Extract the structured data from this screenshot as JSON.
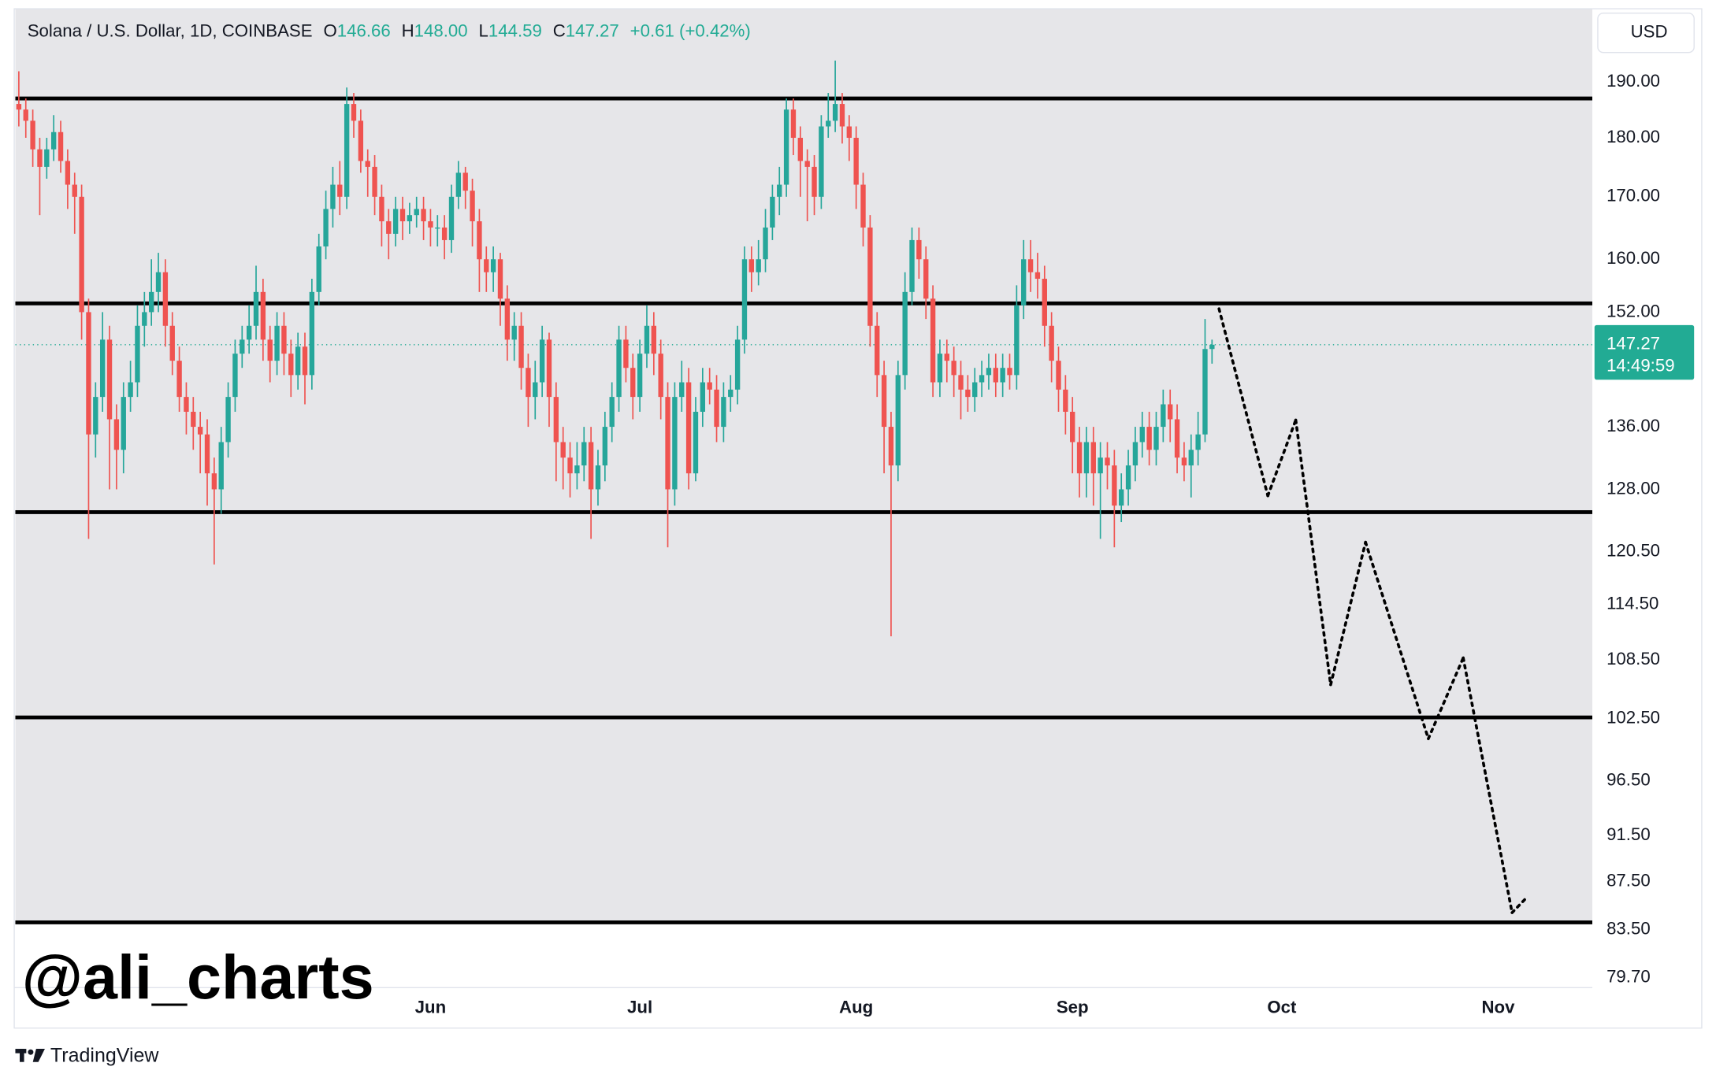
{
  "chart_data": {
    "type": "candlestick",
    "title": "Solana / U.S. Dollar, 1D, COINBASE",
    "ohlc_header": {
      "open_label": "O",
      "open": "146.66",
      "high_label": "H",
      "high": "148.00",
      "low_label": "L",
      "low": "144.59",
      "close_label": "C",
      "close": "147.27",
      "change": "+0.61 (+0.42%)"
    },
    "currency": "USD",
    "watermark": "@ali_charts",
    "brand": "TradingView",
    "log_scale": true,
    "up_color": "#26a69a",
    "down_color": "#ef5350",
    "ylim": [
      79.2,
      204
    ],
    "yticks": [
      {
        "value": 190,
        "label": "190.00"
      },
      {
        "value": 180,
        "label": "180.00"
      },
      {
        "value": 170,
        "label": "170.00"
      },
      {
        "value": 160,
        "label": "160.00"
      },
      {
        "value": 152,
        "label": "152.00"
      },
      {
        "value": 136,
        "label": "136.00"
      },
      {
        "value": 128,
        "label": "128.00"
      },
      {
        "value": 120.5,
        "label": "120.50"
      },
      {
        "value": 114.5,
        "label": "114.50"
      },
      {
        "value": 108.5,
        "label": "108.50"
      },
      {
        "value": 102.5,
        "label": "102.50"
      },
      {
        "value": 96.5,
        "label": "96.50"
      },
      {
        "value": 91.5,
        "label": "91.50"
      },
      {
        "value": 87.5,
        "label": "87.50"
      },
      {
        "value": 83.5,
        "label": "83.50"
      },
      {
        "value": 79.7,
        "label": "79.70"
      }
    ],
    "price_label": {
      "value": 147.27,
      "label": "147.27"
    },
    "countdown": "14:49:59",
    "levels": [
      187,
      153.3,
      125.2,
      102.6,
      84.1
    ],
    "categories": [
      null,
      null,
      null,
      null,
      null,
      null,
      null,
      null,
      null,
      null,
      null,
      null,
      null,
      null,
      null,
      null,
      null,
      null,
      null,
      null,
      null,
      null,
      null,
      null,
      null,
      null,
      null,
      null,
      null,
      null,
      null,
      null,
      null,
      null,
      null,
      null,
      null,
      null,
      null,
      null,
      null,
      null,
      null,
      null,
      null,
      null,
      null,
      null,
      null,
      null,
      null,
      null,
      null,
      null,
      null,
      null,
      null,
      null,
      null,
      "Jun",
      null,
      null,
      null,
      null,
      null,
      null,
      null,
      null,
      null,
      null,
      null,
      null,
      null,
      null,
      null,
      null,
      null,
      null,
      null,
      null,
      null,
      null,
      null,
      null,
      null,
      null,
      null,
      null,
      null,
      "Jul",
      null,
      null,
      null,
      null,
      null,
      null,
      null,
      null,
      null,
      null,
      null,
      null,
      null,
      null,
      null,
      null,
      null,
      null,
      null,
      null,
      null,
      null,
      null,
      null,
      null,
      null,
      null,
      null,
      null,
      null,
      "Aug",
      null,
      null,
      null,
      null,
      null,
      null,
      null,
      null,
      null,
      null,
      null,
      null,
      null,
      null,
      null,
      null,
      null,
      null,
      null,
      null,
      null,
      null,
      null,
      null,
      null,
      null,
      null,
      null,
      null,
      null,
      "Sep",
      null,
      null,
      null,
      null,
      null,
      null,
      null,
      null,
      null,
      null,
      null,
      null,
      null,
      null,
      null,
      null,
      null,
      null,
      null,
      null,
      null,
      null,
      null,
      null,
      null,
      null,
      null,
      null,
      null,
      "Oct",
      null,
      null,
      null,
      null,
      null,
      null,
      null,
      null,
      null,
      null,
      null,
      null,
      null,
      null,
      null,
      null,
      null,
      null,
      null,
      null,
      null,
      null,
      null,
      null,
      null,
      null,
      null,
      null,
      null,
      null,
      "Nov",
      null,
      null,
      null,
      null,
      null,
      null,
      null,
      null,
      null,
      null,
      null,
      null,
      null
    ],
    "ohlc": {
      "open": [
        186,
        185,
        183,
        178,
        175,
        178,
        181,
        176,
        172,
        170,
        152,
        135,
        140,
        148,
        137,
        133,
        140,
        142,
        150,
        152,
        155,
        158,
        150,
        145,
        140,
        138,
        136,
        135,
        130,
        128,
        134,
        140,
        146,
        148,
        150,
        155,
        148,
        145,
        150,
        146,
        143,
        147,
        143,
        155,
        162,
        168,
        172,
        170,
        186,
        183,
        176,
        175,
        170,
        166,
        164,
        168,
        166,
        167,
        168,
        166,
        165,
        165,
        163,
        170,
        174,
        171,
        166,
        160,
        158,
        160,
        154,
        148,
        150,
        144,
        140,
        142,
        148,
        140,
        134,
        132,
        130,
        131,
        134,
        128,
        131,
        136,
        140,
        148,
        144,
        140,
        146,
        150,
        146,
        140,
        128,
        140,
        142,
        130,
        138,
        142,
        141,
        136,
        140,
        141,
        148,
        160,
        158,
        160,
        165,
        170,
        172,
        185,
        180,
        176,
        175,
        170,
        182,
        183,
        186,
        182,
        180,
        172,
        165,
        150,
        143,
        136,
        131,
        143,
        155,
        163,
        160,
        154,
        142,
        146,
        145,
        143,
        141,
        140,
        142,
        143,
        144,
        142,
        144,
        143,
        153,
        160,
        158,
        157,
        150,
        145,
        141,
        138,
        134,
        130,
        134,
        130,
        132,
        131,
        126,
        128,
        131,
        134,
        136,
        133,
        136,
        139,
        137,
        132,
        131,
        133,
        135,
        146.66,
        null,
        null,
        null,
        null,
        null,
        null,
        null,
        null,
        null,
        null,
        null,
        null,
        null,
        null,
        null,
        null,
        null,
        null,
        null,
        null,
        null,
        null,
        null,
        null,
        null,
        null,
        null,
        null,
        null,
        null,
        null,
        null,
        null,
        null,
        null,
        null,
        null,
        null,
        null,
        null,
        null,
        null,
        null,
        null,
        null,
        null,
        null,
        null,
        null,
        null,
        null,
        null,
        null,
        null
      ],
      "high": [
        192,
        187,
        185,
        180,
        180,
        184,
        183,
        178,
        174,
        172,
        154,
        142,
        152,
        150,
        139,
        142,
        145,
        153,
        155,
        160,
        161,
        160,
        152,
        147,
        142,
        140,
        138,
        137,
        132,
        136,
        142,
        148,
        150,
        153,
        159,
        157,
        150,
        152,
        152,
        148,
        149,
        149,
        157,
        164,
        171,
        175,
        176,
        189,
        188,
        185,
        178,
        177,
        172,
        168,
        170,
        170,
        169,
        170,
        170,
        168,
        167,
        167,
        172,
        176,
        175,
        173,
        168,
        162,
        162,
        161,
        156,
        152,
        152,
        146,
        145,
        150,
        149,
        142,
        136,
        134,
        134,
        136,
        136,
        133,
        138,
        142,
        150,
        150,
        146,
        148,
        153,
        152,
        148,
        142,
        142,
        145,
        144,
        140,
        144,
        144,
        143,
        142,
        143,
        150,
        162,
        162,
        163,
        168,
        172,
        175,
        187,
        187,
        182,
        178,
        177,
        184,
        188,
        194,
        188,
        184,
        182,
        174,
        167,
        152,
        145,
        138,
        145,
        158,
        165,
        165,
        162,
        156,
        148,
        148,
        147,
        145,
        143,
        144,
        145,
        146,
        146,
        146,
        146,
        156,
        163,
        163,
        161,
        159,
        152,
        147,
        143,
        140,
        136,
        136,
        136,
        134,
        134,
        133,
        130,
        133,
        136,
        138,
        138,
        138,
        141,
        141,
        139,
        134,
        135,
        138,
        151,
        148,
        null,
        null,
        null,
        null,
        null,
        null,
        null,
        null,
        null,
        null,
        null,
        null,
        null,
        null,
        null,
        null,
        null,
        null,
        null,
        null,
        null,
        null,
        null,
        null,
        null,
        null,
        null,
        null,
        null,
        null,
        null,
        null,
        null,
        null,
        null,
        null,
        null,
        null,
        null,
        null,
        null,
        null,
        null,
        null,
        null,
        null,
        null,
        null,
        null,
        null,
        null,
        null,
        null,
        null
      ],
      "low": [
        182,
        180,
        175,
        167,
        173,
        176,
        174,
        168,
        164,
        148,
        122,
        132,
        138,
        128,
        128,
        130,
        138,
        140,
        147,
        150,
        152,
        147,
        143,
        138,
        135,
        133,
        130,
        126,
        119,
        125,
        132,
        138,
        144,
        146,
        148,
        145,
        142,
        143,
        143,
        140,
        141,
        139,
        141,
        153,
        160,
        165,
        167,
        168,
        180,
        174,
        170,
        167,
        162,
        160,
        162,
        163,
        164,
        165,
        163,
        162,
        162,
        160,
        161,
        168,
        168,
        162,
        155,
        155,
        155,
        150,
        145,
        145,
        141,
        136,
        137,
        140,
        136,
        129,
        128,
        127,
        128,
        129,
        122,
        126,
        129,
        134,
        138,
        142,
        137,
        138,
        144,
        143,
        137,
        121,
        126,
        138,
        128,
        129,
        136,
        139,
        134,
        134,
        138,
        139,
        146,
        155,
        156,
        158,
        163,
        167,
        170,
        177,
        170,
        166,
        167,
        168,
        180,
        181,
        179,
        176,
        168,
        162,
        147,
        140,
        130,
        111,
        129,
        141,
        153,
        157,
        151,
        140,
        140,
        142,
        140,
        137,
        138,
        138,
        140,
        141,
        140,
        140,
        141,
        141,
        151,
        155,
        154,
        147,
        142,
        138,
        135,
        130,
        127,
        127,
        126,
        122,
        128,
        121,
        124,
        126,
        129,
        132,
        131,
        131,
        134,
        134,
        130,
        129,
        127,
        131,
        134,
        144.59,
        null,
        null,
        null,
        null,
        null,
        null,
        null,
        null,
        null,
        null,
        null,
        null,
        null,
        null,
        null,
        null,
        null,
        null,
        null,
        null,
        null,
        null,
        null,
        null,
        null,
        null,
        null,
        null,
        null,
        null,
        null,
        null,
        null,
        null,
        null,
        null,
        null,
        null,
        null,
        null,
        null,
        null,
        null,
        null,
        null,
        null,
        null,
        null,
        null,
        null,
        null,
        null,
        null,
        null
      ],
      "close": [
        185,
        183,
        178,
        175,
        178,
        181,
        176,
        172,
        170,
        152,
        135,
        140,
        148,
        137,
        133,
        140,
        142,
        150,
        152,
        155,
        158,
        150,
        145,
        140,
        138,
        136,
        135,
        130,
        128,
        134,
        140,
        146,
        148,
        150,
        155,
        148,
        145,
        150,
        146,
        143,
        147,
        143,
        155,
        162,
        168,
        172,
        170,
        186,
        183,
        176,
        175,
        170,
        166,
        164,
        168,
        166,
        167,
        168,
        166,
        165,
        165,
        163,
        170,
        174,
        171,
        166,
        160,
        158,
        160,
        154,
        148,
        150,
        144,
        140,
        142,
        148,
        140,
        134,
        132,
        130,
        131,
        134,
        128,
        131,
        136,
        140,
        148,
        144,
        140,
        146,
        150,
        146,
        140,
        128,
        140,
        142,
        130,
        138,
        142,
        141,
        136,
        140,
        141,
        148,
        160,
        158,
        160,
        165,
        170,
        172,
        185,
        180,
        176,
        175,
        170,
        182,
        183,
        186,
        182,
        180,
        172,
        165,
        150,
        143,
        136,
        131,
        143,
        155,
        163,
        160,
        154,
        142,
        146,
        145,
        143,
        141,
        140,
        142,
        143,
        144,
        142,
        144,
        143,
        153,
        160,
        158,
        157,
        150,
        145,
        141,
        138,
        134,
        130,
        134,
        130,
        132,
        131,
        126,
        128,
        131,
        134,
        136,
        133,
        136,
        139,
        137,
        132,
        131,
        133,
        135,
        146.66,
        147.27,
        null,
        null,
        null,
        null,
        null,
        null,
        null,
        null,
        null,
        null,
        null,
        null,
        null,
        null,
        null,
        null,
        null,
        null,
        null,
        null,
        null,
        null,
        null,
        null,
        null,
        null,
        null,
        null,
        null,
        null,
        null,
        null,
        null,
        null,
        null,
        null,
        null,
        null,
        null,
        null,
        null,
        null,
        null,
        null,
        null,
        null,
        null,
        null,
        null,
        null,
        null,
        null,
        null,
        null
      ]
    },
    "projection": {
      "color": "#000000",
      "values": [
        null,
        null,
        null,
        null,
        null,
        null,
        null,
        null,
        null,
        null,
        null,
        null,
        null,
        null,
        null,
        null,
        null,
        null,
        null,
        null,
        null,
        null,
        null,
        null,
        null,
        null,
        null,
        null,
        null,
        null,
        null,
        null,
        null,
        null,
        null,
        null,
        null,
        null,
        null,
        null,
        null,
        null,
        null,
        null,
        null,
        null,
        null,
        null,
        null,
        null,
        null,
        null,
        null,
        null,
        null,
        null,
        null,
        null,
        null,
        null,
        null,
        null,
        null,
        null,
        null,
        null,
        null,
        null,
        null,
        null,
        null,
        null,
        null,
        null,
        null,
        null,
        null,
        null,
        null,
        null,
        null,
        null,
        null,
        null,
        null,
        null,
        null,
        null,
        null,
        null,
        null,
        null,
        null,
        null,
        null,
        null,
        null,
        null,
        null,
        null,
        null,
        null,
        null,
        null,
        null,
        null,
        null,
        null,
        null,
        null,
        null,
        null,
        null,
        null,
        null,
        null,
        null,
        null,
        null,
        null,
        null,
        null,
        null,
        null,
        null,
        null,
        null,
        null,
        null,
        null,
        null,
        null,
        null,
        null,
        null,
        null,
        null,
        null,
        null,
        null,
        null,
        null,
        null,
        null,
        null,
        null,
        null,
        null,
        null,
        null,
        null,
        null,
        null,
        null,
        null,
        null,
        null,
        null,
        null,
        null,
        null,
        null,
        null,
        null,
        null,
        null,
        null,
        null,
        null,
        null,
        null,
        null,
        152.5,
        null,
        null,
        null,
        null,
        null,
        null,
        127.2,
        null,
        null,
        null,
        136.9,
        null,
        null,
        null,
        null,
        105.9,
        null,
        null,
        null,
        null,
        121.6,
        null,
        null,
        null,
        null,
        null,
        null,
        null,
        null,
        100.5,
        null,
        null,
        null,
        null,
        108.7,
        null,
        null,
        null,
        null,
        null,
        null,
        84.9,
        null,
        86.1,
        null,
        null,
        null,
        null,
        null,
        null,
        null,
        null,
        null
      ]
    }
  }
}
